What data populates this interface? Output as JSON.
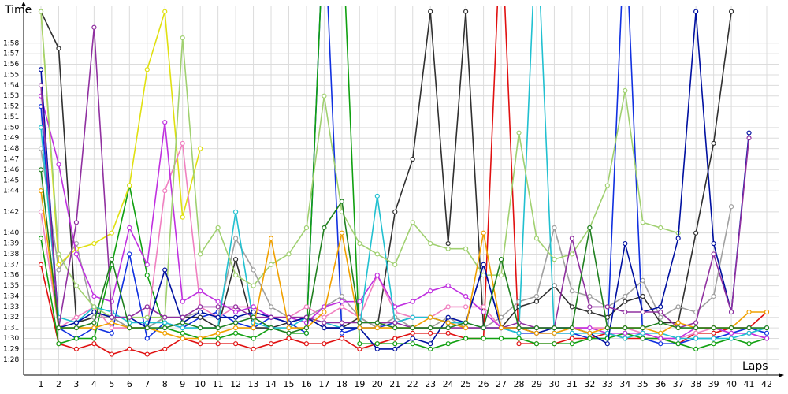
{
  "chart_data": {
    "type": "line",
    "y_label": "Time",
    "x_label": "Laps",
    "categories": [
      "1",
      "2",
      "3",
      "4",
      "5",
      "6",
      "7",
      "8",
      "9",
      "10",
      "11",
      "12",
      "13",
      "14",
      "15",
      "16",
      "17",
      "18",
      "19",
      "20",
      "21",
      "22",
      "23",
      "24",
      "25",
      "26",
      "27",
      "28",
      "29",
      "30",
      "31",
      "32",
      "33",
      "34",
      "35",
      "36",
      "37",
      "38",
      "39",
      "40",
      "41",
      "42"
    ],
    "ylim": [
      86.6,
      120.6
    ],
    "yticks": [
      {
        "value": 88,
        "label": "1:28"
      },
      {
        "value": 89,
        "label": "1:29"
      },
      {
        "value": 90,
        "label": "1:30"
      },
      {
        "value": 91,
        "label": "1:31"
      },
      {
        "value": 92,
        "label": "1:32"
      },
      {
        "value": 93,
        "label": "1:33"
      },
      {
        "value": 94,
        "label": "1:34"
      },
      {
        "value": 95,
        "label": "1:35"
      },
      {
        "value": 96,
        "label": "1:36"
      },
      {
        "value": 97,
        "label": "1:37"
      },
      {
        "value": 98,
        "label": "1:38"
      },
      {
        "value": 99,
        "label": "1:39"
      },
      {
        "value": 100,
        "label": "1:40"
      },
      {
        "value": 102,
        "label": "1:42"
      },
      {
        "value": 104,
        "label": "1:44"
      },
      {
        "value": 105,
        "label": "1:45"
      },
      {
        "value": 106,
        "label": "1:46"
      },
      {
        "value": 107,
        "label": "1:47"
      },
      {
        "value": 108,
        "label": "1:48"
      },
      {
        "value": 109,
        "label": "1:49"
      },
      {
        "value": 110,
        "label": "1:50"
      },
      {
        "value": 111,
        "label": "1:51"
      },
      {
        "value": 112,
        "label": "1:52"
      },
      {
        "value": 113,
        "label": "1:53"
      },
      {
        "value": 114,
        "label": "1:54"
      },
      {
        "value": 115,
        "label": "1:55"
      },
      {
        "value": 116,
        "label": "1:56"
      },
      {
        "value": 117,
        "label": "1:57"
      },
      {
        "value": 118,
        "label": "1:58"
      }
    ],
    "grid": true,
    "series": [
      {
        "name": "red",
        "color": "#e01010",
        "values": [
          97,
          89.5,
          89,
          89.5,
          88.5,
          89,
          88.5,
          89,
          90,
          89.5,
          89.5,
          89.5,
          89,
          89.5,
          90,
          89.5,
          89.5,
          90,
          89,
          89.5,
          90,
          90.5,
          90.5,
          90.5,
          90,
          90,
          130,
          89.5,
          89.5,
          89.5,
          90,
          90,
          90.5,
          90,
          90,
          90,
          89.5,
          90.5,
          90.5,
          91,
          91,
          92.5
        ]
      },
      {
        "name": "blue",
        "color": "#1030e0",
        "values": [
          112,
          91,
          90,
          91,
          90.5,
          98,
          90,
          91.5,
          91,
          92,
          92.5,
          91.5,
          91,
          92,
          91.5,
          90.5,
          130,
          90.5,
          91,
          91,
          91.5,
          92,
          92,
          91.5,
          91.5,
          97,
          91,
          90.5,
          90.5,
          90.5,
          90.5,
          90,
          90,
          130,
          90,
          89.5,
          89.5,
          90,
          90,
          90.5,
          91,
          90.5
        ]
      },
      {
        "name": "green",
        "color": "#10a010",
        "values": [
          99.5,
          89.5,
          90,
          90,
          97,
          104.5,
          96,
          91,
          90.5,
          90,
          90,
          90.5,
          90,
          91,
          90.5,
          90.5,
          130,
          130,
          89.5,
          89.5,
          89.5,
          89.5,
          89,
          89.5,
          90,
          90,
          90,
          90,
          89.5,
          89.5,
          89.5,
          90,
          90,
          90.5,
          90,
          90,
          89.5,
          89,
          89.5,
          90,
          89.5,
          90
        ]
      },
      {
        "name": "black",
        "color": "#303030",
        "values": [
          121,
          117.5,
          91.5,
          92,
          92,
          91,
          91,
          92,
          92,
          92,
          91,
          97.5,
          91,
          91,
          91.5,
          92,
          91,
          91,
          92,
          91,
          102,
          107,
          121,
          99,
          121,
          91,
          91,
          93,
          93.5,
          95,
          93,
          92.5,
          92,
          93.5,
          94,
          91.5,
          91.5,
          100,
          108.5,
          121,
          null,
          null
        ]
      },
      {
        "name": "gray",
        "color": "#a0a0a0",
        "values": [
          108,
          96.5,
          99,
          92,
          92,
          91,
          91,
          92,
          92,
          92.5,
          92,
          99.5,
          96.5,
          93,
          92,
          92,
          93,
          94,
          92,
          91,
          92,
          91,
          91,
          92,
          91,
          91,
          92,
          93.5,
          94,
          100.5,
          94.5,
          94,
          93,
          94,
          95.5,
          92,
          93,
          92.5,
          94,
          102.5,
          null,
          null
        ]
      },
      {
        "name": "yellow",
        "color": "#e0e010",
        "values": [
          121,
          97,
          98.5,
          99,
          100,
          104.5,
          115.5,
          121,
          101.5,
          108,
          null,
          null,
          null,
          null,
          null,
          null,
          null,
          null,
          null,
          null,
          null,
          null,
          null,
          null,
          null,
          null,
          null,
          null,
          null,
          null,
          null,
          null,
          null,
          null,
          null,
          null,
          null,
          null,
          null,
          null,
          null,
          null
        ]
      },
      {
        "name": "pink",
        "color": "#f080c0",
        "values": [
          102,
          91,
          92,
          93,
          91,
          91,
          91,
          104,
          108.5,
          93,
          92,
          93,
          93,
          92,
          92,
          93,
          92,
          93,
          92,
          96,
          92.5,
          92,
          92,
          93,
          93,
          93,
          91,
          91,
          90.5,
          90.5,
          91,
          91,
          91,
          91,
          90.5,
          90,
          90,
          90.5,
          91,
          90.5,
          90.5,
          90
        ]
      },
      {
        "name": "magenta",
        "color": "#c030e0",
        "values": [
          113,
          106.5,
          98,
          94,
          93.5,
          100.5,
          97,
          110.5,
          93.5,
          94.5,
          93.5,
          92.5,
          93,
          92,
          92,
          91.5,
          93,
          93.5,
          93.5,
          96,
          93,
          93.5,
          94.5,
          95,
          94,
          92.5,
          91,
          91,
          91,
          91,
          91,
          91,
          90.5,
          90.5,
          90.5,
          90,
          90,
          91,
          91,
          90.5,
          90.5,
          90
        ]
      },
      {
        "name": "cyan",
        "color": "#20c0d0",
        "values": [
          110,
          92,
          91.5,
          93,
          92.5,
          91.5,
          91.5,
          91.5,
          91,
          91,
          91,
          102,
          91.5,
          91,
          91,
          92,
          91.5,
          91,
          91,
          103.5,
          91.5,
          92,
          92,
          91.5,
          91.5,
          91,
          91,
          90.5,
          130,
          90.5,
          90.5,
          90.5,
          90.5,
          90,
          90.5,
          90.5,
          90,
          90,
          90,
          90,
          90.5,
          91
        ]
      },
      {
        "name": "light-green",
        "color": "#a0d070",
        "values": [
          121,
          98,
          95,
          93,
          92,
          92,
          92,
          92,
          118.5,
          98,
          100.5,
          96,
          95,
          97,
          98,
          100.5,
          113,
          102,
          99,
          98,
          97,
          101,
          99,
          98.5,
          98.5,
          96,
          96,
          109.5,
          99.5,
          97.5,
          98,
          100.5,
          104.5,
          113.5,
          101,
          100.5,
          100,
          null,
          null,
          null,
          null,
          null
        ]
      },
      {
        "name": "dark-blue",
        "color": "#0010a0",
        "values": [
          115.5,
          91,
          91.5,
          92.5,
          92,
          92,
          91,
          96.5,
          91.5,
          92.5,
          92,
          92,
          92.5,
          92,
          91.5,
          92,
          91,
          91,
          91,
          89,
          89,
          90,
          89.5,
          92,
          91.5,
          97,
          91,
          91,
          90.5,
          91,
          91,
          90.5,
          89.5,
          99,
          92.5,
          93,
          99.5,
          121,
          99,
          92.5,
          109.5,
          null
        ]
      },
      {
        "name": "purple",
        "color": "#9030a0",
        "values": [
          114,
          91,
          101,
          119.5,
          92,
          92,
          93,
          92,
          92,
          93,
          93,
          93,
          92,
          92,
          92,
          92,
          91.5,
          91.5,
          91.5,
          91.5,
          91.5,
          91,
          91,
          91,
          91,
          91,
          91,
          91.5,
          91,
          91,
          99.5,
          93,
          93,
          92.5,
          92.5,
          92.5,
          91,
          91.5,
          98,
          92.5,
          109,
          null
        ]
      },
      {
        "name": "orange",
        "color": "#f0a000",
        "values": [
          104,
          91,
          91,
          91,
          91.5,
          91,
          91,
          90.5,
          90,
          90,
          90.5,
          91,
          91,
          99.5,
          91,
          91,
          92.5,
          100,
          91,
          91,
          91,
          91,
          92,
          91.5,
          91,
          100,
          91,
          91,
          90.5,
          90.5,
          91,
          90.5,
          91,
          91,
          91,
          90.5,
          91.5,
          91,
          91,
          91,
          92.5,
          92.5
        ]
      },
      {
        "name": "dark-green",
        "color": "#208020",
        "values": [
          106,
          91,
          91,
          91.5,
          97.5,
          91,
          91,
          91,
          91.5,
          91,
          91,
          91.5,
          92,
          91,
          90.5,
          91,
          100.5,
          103,
          91.5,
          91.5,
          91,
          91,
          91,
          91,
          91.5,
          91,
          97.5,
          91,
          91,
          91,
          91,
          100.5,
          91,
          91,
          91,
          91.5,
          91,
          91,
          91,
          91,
          91,
          91
        ]
      }
    ]
  }
}
